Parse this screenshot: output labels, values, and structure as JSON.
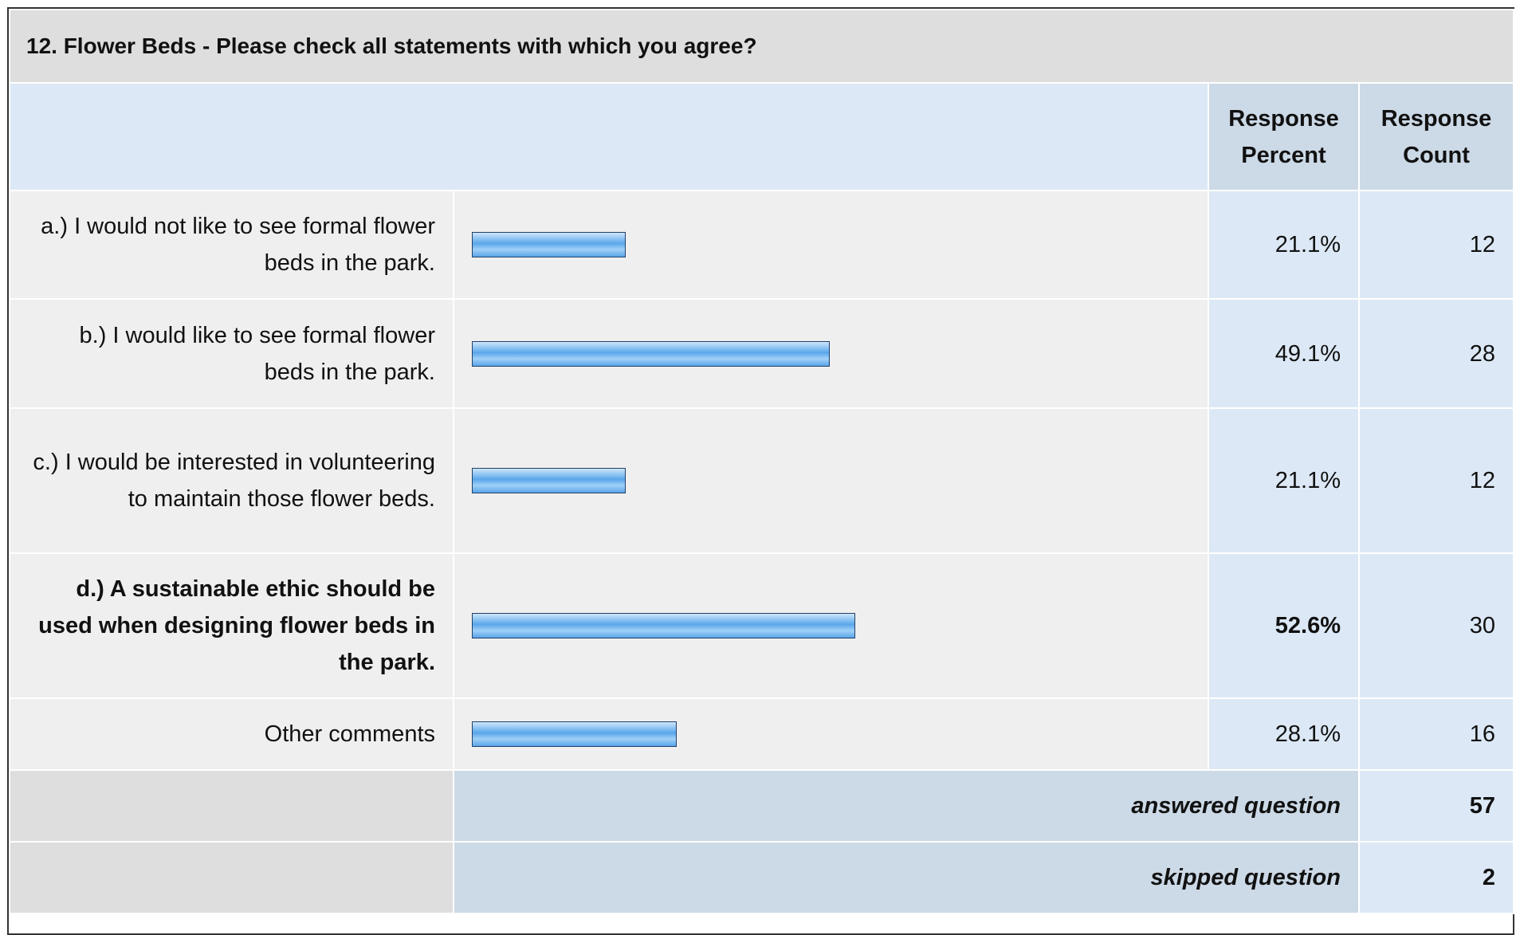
{
  "title": "12. Flower Beds - Please check all statements with which you agree?",
  "table": {
    "headers": [
      "Response Percent",
      "Response Count"
    ],
    "rows": [
      {
        "label": "a.) I would not like to see formal flower beds in the park.",
        "percent": 21.1,
        "percent_label": "21.1%",
        "count": 12
      },
      {
        "label": "b.) I would like to see formal flower beds in the park.",
        "percent": 49.1,
        "percent_label": "49.1%",
        "count": 28
      },
      {
        "label": "c.) I would be interested in volunteering to maintain those flower beds.",
        "percent": 21.1,
        "percent_label": "21.1%",
        "count": 12
      },
      {
        "label": "d.) A sustainable ethic should be used when designing flower beds in the park.",
        "percent": 52.6,
        "percent_label": "52.6%",
        "count": 30,
        "bold": true
      },
      {
        "label": "Other comments",
        "percent": 28.1,
        "percent_label": "28.1%",
        "count": 16
      }
    ],
    "answered": {
      "label": "answered question",
      "count": 57
    },
    "skipped": {
      "label": "skipped question",
      "count": 2
    }
  }
}
